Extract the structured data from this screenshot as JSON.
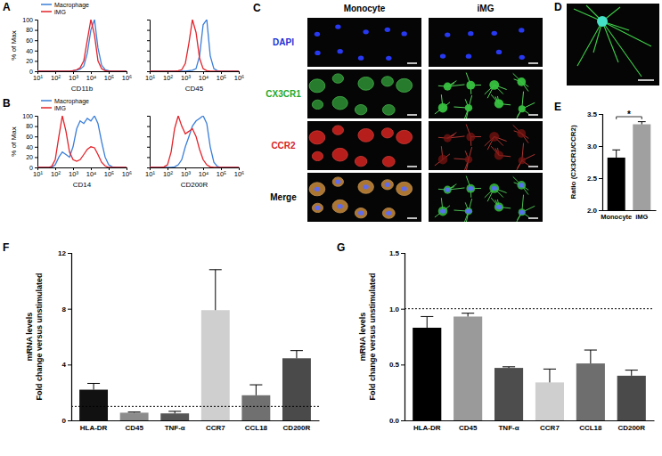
{
  "chart_data": [
    {
      "type": "line",
      "log": "x",
      "legend": "top-left",
      "x": [
        10,
        16,
        25,
        40,
        63,
        100,
        160,
        250,
        400,
        630,
        1000,
        1600,
        2500,
        4000,
        6300,
        10000,
        16000,
        25000,
        40000,
        63000,
        100000,
        160000,
        250000,
        400000,
        630000,
        1000000
      ],
      "xlim": [
        10,
        1000000
      ],
      "xticks": [
        {
          "value": 10,
          "label": "10¹"
        },
        {
          "value": 100,
          "label": "10²"
        },
        {
          "value": 1000,
          "label": "10³"
        },
        {
          "value": 10000,
          "label": "10⁴"
        },
        {
          "value": 100000,
          "label": "10⁵"
        },
        {
          "value": 1000000,
          "label": "10⁶"
        }
      ],
      "ylim": [
        0,
        100
      ],
      "yticks": [
        0,
        20,
        40,
        60,
        80,
        100
      ],
      "y_label": "% of Max",
      "x_label": "CD11b",
      "series": [
        {
          "name": "Macrophage",
          "color": "#3b7fd9",
          "values": [
            0,
            0,
            0,
            0,
            0,
            0,
            0,
            0,
            0,
            0,
            1,
            2,
            4,
            10,
            35,
            80,
            100,
            45,
            12,
            3,
            1,
            0,
            0,
            0,
            0,
            0
          ]
        },
        {
          "name": "iMG",
          "color": "#e3242b",
          "values": [
            0,
            0,
            0,
            0,
            0,
            0,
            0,
            0,
            0,
            0,
            1,
            3,
            7,
            20,
            60,
            100,
            70,
            20,
            5,
            1,
            0,
            0,
            0,
            0,
            0,
            0
          ]
        }
      ]
    },
    {
      "type": "line",
      "log": "x",
      "tick_labels": "x",
      "x": [
        10,
        16,
        25,
        40,
        63,
        100,
        160,
        250,
        400,
        630,
        1000,
        1600,
        2500,
        4000,
        6300,
        10000,
        16000,
        25000,
        40000,
        63000,
        100000,
        160000,
        250000,
        400000,
        630000,
        1000000
      ],
      "xlim": [
        10,
        1000000
      ],
      "xticks": [
        {
          "value": 10,
          "label": "10¹"
        },
        {
          "value": 100,
          "label": "10²"
        },
        {
          "value": 1000,
          "label": "10³"
        },
        {
          "value": 10000,
          "label": "10⁴"
        },
        {
          "value": 100000,
          "label": "10⁵"
        },
        {
          "value": 1000000,
          "label": "10⁶"
        }
      ],
      "ylim": [
        0,
        100
      ],
      "yticks": [
        0,
        20,
        40,
        60,
        80,
        100
      ],
      "x_label": "CD45",
      "series": [
        {
          "color": "#3b7fd9",
          "values": [
            0,
            0,
            0,
            0,
            0,
            0,
            0,
            0,
            0,
            0,
            0,
            1,
            2,
            5,
            30,
            90,
            100,
            30,
            5,
            1,
            0,
            0,
            0,
            0,
            0,
            0
          ]
        },
        {
          "color": "#e3242b",
          "values": [
            0,
            0,
            0,
            0,
            0,
            0,
            0,
            0,
            1,
            3,
            15,
            55,
            100,
            75,
            25,
            5,
            1,
            0,
            0,
            0,
            0,
            0,
            0,
            0,
            0,
            0
          ]
        }
      ]
    },
    {
      "type": "line",
      "log": "x",
      "legend": "top-left",
      "x": [
        10,
        16,
        25,
        40,
        63,
        100,
        160,
        250,
        400,
        630,
        1000,
        1600,
        2500,
        4000,
        6300,
        10000,
        16000,
        25000,
        40000,
        63000,
        100000,
        160000,
        250000,
        400000,
        630000,
        1000000
      ],
      "xlim": [
        10,
        1000000
      ],
      "xticks": [
        {
          "value": 10,
          "label": "10¹"
        },
        {
          "value": 100,
          "label": "10²"
        },
        {
          "value": 1000,
          "label": "10³"
        },
        {
          "value": 10000,
          "label": "10⁴"
        },
        {
          "value": 100000,
          "label": "10⁵"
        },
        {
          "value": 1000000,
          "label": "10⁶"
        }
      ],
      "ylim": [
        0,
        100
      ],
      "yticks": [
        0,
        20,
        40,
        60,
        80,
        100
      ],
      "y_label": "% of Max",
      "x_label": "CD14",
      "series": [
        {
          "name": "Macrophage",
          "color": "#3b7fd9",
          "values": [
            0,
            0,
            0,
            0,
            0,
            5,
            20,
            30,
            25,
            20,
            40,
            75,
            90,
            85,
            95,
            90,
            100,
            85,
            50,
            20,
            5,
            1,
            0,
            0,
            0,
            0
          ]
        },
        {
          "name": "iMG",
          "color": "#e3242b",
          "values": [
            0,
            0,
            0,
            0,
            2,
            15,
            60,
            100,
            70,
            30,
            15,
            12,
            15,
            25,
            35,
            40,
            38,
            25,
            10,
            3,
            0,
            0,
            0,
            0,
            0,
            0
          ]
        }
      ]
    },
    {
      "type": "line",
      "log": "x",
      "tick_labels": "x",
      "x": [
        10,
        16,
        25,
        40,
        63,
        100,
        160,
        250,
        400,
        630,
        1000,
        1600,
        2500,
        4000,
        6300,
        10000,
        16000,
        25000,
        40000,
        63000,
        100000,
        160000,
        250000,
        400000,
        630000,
        1000000
      ],
      "xlim": [
        10,
        1000000
      ],
      "xticks": [
        {
          "value": 10,
          "label": "10¹"
        },
        {
          "value": 100,
          "label": "10²"
        },
        {
          "value": 1000,
          "label": "10³"
        },
        {
          "value": 10000,
          "label": "10⁴"
        },
        {
          "value": 100000,
          "label": "10⁵"
        },
        {
          "value": 1000000,
          "label": "10⁶"
        }
      ],
      "ylim": [
        0,
        100
      ],
      "yticks": [
        0,
        20,
        40,
        60,
        80,
        100
      ],
      "x_label": "CD200R",
      "series": [
        {
          "color": "#3b7fd9",
          "values": [
            0,
            0,
            0,
            0,
            0,
            0,
            0,
            1,
            5,
            15,
            40,
            60,
            80,
            90,
            95,
            100,
            85,
            40,
            10,
            2,
            0,
            0,
            0,
            0,
            0,
            0
          ]
        },
        {
          "color": "#e3242b",
          "values": [
            0,
            0,
            0,
            0,
            1,
            5,
            30,
            75,
            100,
            80,
            65,
            70,
            75,
            60,
            35,
            15,
            5,
            1,
            0,
            0,
            0,
            0,
            0,
            0,
            0,
            0
          ]
        }
      ]
    },
    {
      "type": "bar",
      "categories": [
        "Monocyte",
        "iMG"
      ],
      "values": [
        2.82,
        3.34
      ],
      "errors": [
        0.12,
        0.04
      ],
      "colors": [
        "#000000",
        "#a0a0a0"
      ],
      "ylim": [
        2,
        3.5
      ],
      "yticks": [
        {
          "value": 2,
          "label": "2.0"
        },
        {
          "value": 2.5,
          "label": "2.5"
        },
        {
          "value": 3,
          "label": "3.0"
        },
        {
          "value": 3.5,
          "label": "3.5"
        }
      ],
      "y_label": "Ratio (CX3CR1/CCR2)",
      "annotation": "*"
    },
    {
      "type": "bar",
      "categories": [
        "HLA-DR",
        "CD45",
        "TNF-α",
        "CCR7",
        "CCL18",
        "CD200R"
      ],
      "values": [
        2.2,
        0.55,
        0.5,
        7.9,
        1.8,
        4.45
      ],
      "errors": [
        0.45,
        0.05,
        0.15,
        2.9,
        0.75,
        0.55
      ],
      "colors": [
        "#111111",
        "#8c8c8c",
        "#555555",
        "#cfcfcf",
        "#707070",
        "#4a4a4a"
      ],
      "ylim": [
        0,
        12
      ],
      "yticks": [
        0,
        4,
        8,
        12
      ],
      "y_label": [
        "mRNA levels",
        "Fold change versus unstimulated"
      ],
      "reference_line": 1
    },
    {
      "type": "bar",
      "categories": [
        "HLA-DR",
        "CD45",
        "TNF-α",
        "CCR7",
        "CCL18",
        "CD200R"
      ],
      "values": [
        0.83,
        0.93,
        0.47,
        0.34,
        0.51,
        0.4
      ],
      "errors": [
        0.1,
        0.03,
        0.01,
        0.12,
        0.12,
        0.05
      ],
      "colors": [
        "#000000",
        "#9a9a9a",
        "#4d4d4d",
        "#cfcfcf",
        "#6e6e6e",
        "#4a4a4a"
      ],
      "ylim": [
        0,
        1.5
      ],
      "yticks": [
        {
          "value": 0,
          "label": "0.0"
        },
        {
          "value": 0.5,
          "label": "0.5"
        },
        {
          "value": 1,
          "label": "1.0"
        },
        {
          "value": 1.5,
          "label": "1.5"
        }
      ],
      "y_label": [
        "mRNA levels",
        "Fold change versus unstimulated"
      ],
      "reference_line": 1
    }
  ],
  "panel_labels": [
    "A",
    "B",
    "C",
    "D",
    "E",
    "F",
    "G"
  ],
  "image_panels": {
    "columns": [
      "Monocyte",
      "iMG"
    ],
    "rows": [
      {
        "name": "DAPI",
        "color": "#1a2fd6"
      },
      {
        "name": "CX3CR1",
        "color": "#1fa82a"
      },
      {
        "name": "CCR2",
        "color": "#d6231f"
      },
      {
        "name": "Merge",
        "color": "#000000"
      }
    ]
  }
}
